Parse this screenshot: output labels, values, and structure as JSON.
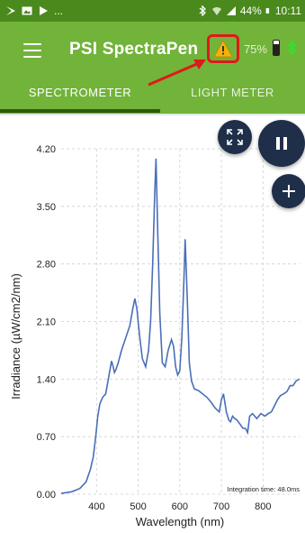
{
  "status_bar": {
    "battery_percent": "44%",
    "time": "10:11",
    "icons": [
      "play-store-icon",
      "image-icon",
      "play-icon",
      "more-dots",
      "bluetooth-icon",
      "wifi-icon",
      "signal-icon",
      "battery-icon"
    ],
    "more": "..."
  },
  "app_bar": {
    "title": "PSI SpectraPen",
    "menu_icon": "hamburger-icon",
    "warning_icon": "warning-triangle-icon",
    "battery_level": "75%",
    "bluetooth_color": "#36e02a"
  },
  "tabs": [
    {
      "label": "SPECTROMETER",
      "active": true
    },
    {
      "label": "LIGHT METER",
      "active": false
    }
  ],
  "buttons": {
    "expand_icon": "fullscreen-icon",
    "pause_icon": "pause-icon",
    "add_icon": "plus-icon"
  },
  "chart_data": {
    "type": "line",
    "xlabel": "Wavelength (nm)",
    "ylabel": "Irradiance (µW/cm2/nm)",
    "annotation": "Integration time: 48.0ms",
    "xlim": [
      315,
      888
    ],
    "ylim": [
      0,
      4.2
    ],
    "x_ticks": [
      400,
      500,
      600,
      700,
      800
    ],
    "y_ticks": [
      "0.00",
      "0.70",
      "1.40",
      "2.10",
      "2.80",
      "3.50",
      "4.20"
    ],
    "grid": true,
    "line_color": "#4a6fb8",
    "series": [
      {
        "x": [
          315,
          340,
          360,
          375,
          385,
          392,
          398,
          403,
          408,
          415,
          422,
          430,
          436,
          440,
          443,
          447,
          452,
          460,
          470,
          480,
          487,
          492,
          497,
          503,
          510,
          518,
          525,
          530,
          535,
          540,
          543,
          547,
          552,
          558,
          565,
          572,
          580,
          585,
          590,
          595,
          600,
          605,
          610,
          613,
          618,
          623,
          628,
          635,
          645,
          655,
          665,
          675,
          685,
          695,
          700,
          705,
          712,
          718,
          722,
          727,
          732,
          738,
          745,
          752,
          758,
          763,
          768,
          775,
          785,
          795,
          805,
          812,
          820,
          828,
          835,
          842,
          850,
          858,
          865,
          872,
          880,
          888
        ],
        "y": [
          0.01,
          0.03,
          0.07,
          0.15,
          0.3,
          0.45,
          0.7,
          0.95,
          1.1,
          1.18,
          1.22,
          1.45,
          1.62,
          1.55,
          1.48,
          1.52,
          1.6,
          1.75,
          1.9,
          2.05,
          2.25,
          2.38,
          2.25,
          1.95,
          1.65,
          1.55,
          1.75,
          2.1,
          2.8,
          3.7,
          4.08,
          3.2,
          2.2,
          1.6,
          1.55,
          1.75,
          1.88,
          1.8,
          1.55,
          1.45,
          1.5,
          1.9,
          2.6,
          3.1,
          2.4,
          1.6,
          1.38,
          1.28,
          1.26,
          1.22,
          1.18,
          1.12,
          1.05,
          1.0,
          1.15,
          1.22,
          1.0,
          0.9,
          0.88,
          0.95,
          0.92,
          0.9,
          0.85,
          0.8,
          0.8,
          0.75,
          0.95,
          0.98,
          0.92,
          0.98,
          0.95,
          0.98,
          1.0,
          1.08,
          1.15,
          1.2,
          1.22,
          1.25,
          1.32,
          1.32,
          1.38,
          1.4
        ]
      }
    ]
  }
}
